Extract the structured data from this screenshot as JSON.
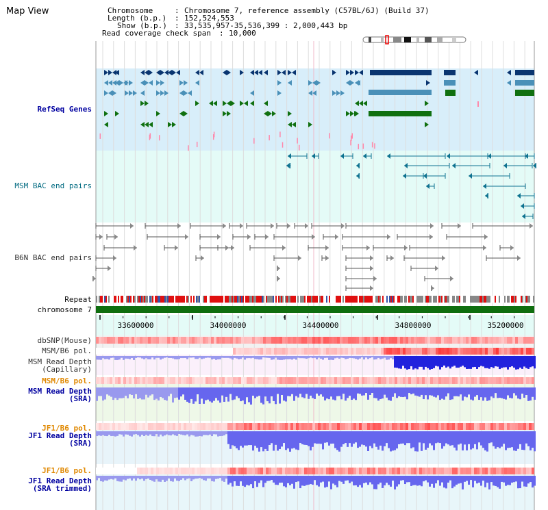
{
  "page_title": "Map View",
  "info": {
    "line1_key": "Chromosome",
    "line1_val": "Chromosome 7, reference assembly (C57BL/6J) (Build 37)",
    "line2_key": "Length (b.p.)",
    "line2_val": "152,524,553",
    "line3_key": "Show (b.p.)",
    "line3_val": "33,535,957-35,536,399 : 2,000,443 bp",
    "line4_key": "Read coverage check span",
    "line4_val": "10,000"
  },
  "tracks": {
    "refseq": "RefSeq Genes",
    "msm_bac": "MSM BAC end pairs",
    "b6n_bac": "B6N BAC end pairs",
    "repeat": "Repeat",
    "chromosome": "chromosome 7",
    "dbsnp": "dbSNP(Mouse)",
    "msm_b6_pol_1": "MSM/B6 pol.",
    "msm_depth_cap_1": "MSM Read Depth",
    "msm_depth_cap_2": "(Capillary)",
    "msm_b6_pol_2": "MSM/B6 pol.",
    "msm_depth_sra_1": "MSM Read Depth",
    "msm_depth_sra_2": "(SRA)",
    "jf1_pol_1": "JF1/B6 pol.",
    "jf1_depth_1": "JF1 Read Depth",
    "jf1_depth_2": "(SRA)",
    "jf1_pol_2": "JF1/B6 pol.",
    "jf1_trim_1": "JF1 Read Depth",
    "jf1_trim_2": "(SRA trimmed)"
  },
  "axis_ticks": [
    "33600000",
    "34000000",
    "34400000",
    "34800000",
    "35200000"
  ],
  "colors": {
    "refseq_bg": "#d8eefa",
    "bac_bg": "#e4fbf7",
    "gene_navy": "#0a3570",
    "gene_steel": "#4a90b8",
    "gene_green": "#107010",
    "chromosome_bar": "#0f6e0f",
    "depth_blue": "#4444ee",
    "depth_light": "#8888ee",
    "pol_red": "#ee2222"
  }
}
